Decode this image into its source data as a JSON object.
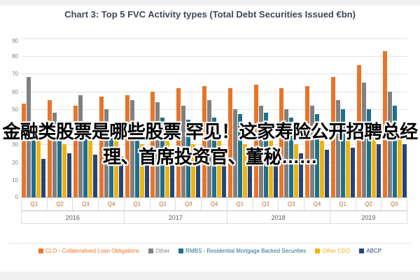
{
  "overlay": {
    "line1": "金融类股票是哪些股票 罕见！这家寿险公开招聘总经",
    "line2": "理、首席投资官、董秘……"
  },
  "chart_data": {
    "type": "bar",
    "title": "Chart 3: Top 5 FVC Activity types (Total Debt Securities Issued €bn)",
    "xlabel": "",
    "ylabel": "",
    "ylim": [
      0,
      90
    ],
    "ytick_step": 10,
    "grid": true,
    "legend_position": "bottom",
    "years": [
      {
        "label": "2016",
        "quarters": [
          "Q1",
          "Q2",
          "Q3",
          "Q4"
        ]
      },
      {
        "label": "2017",
        "quarters": [
          "Q1",
          "Q2",
          "Q3",
          "Q4"
        ]
      },
      {
        "label": "2018",
        "quarters": [
          "Q1",
          "Q2",
          "Q3",
          "Q4"
        ]
      },
      {
        "label": "2019",
        "quarters": [
          "Q1",
          "Q2",
          "Q3"
        ]
      }
    ],
    "series": [
      {
        "name": "CLO - Collateralised Loan Obligations",
        "color": "#e8742a",
        "values": [
          53,
          55,
          52,
          57,
          58,
          60,
          62,
          63,
          62,
          64,
          62,
          63,
          68,
          75,
          83
        ]
      },
      {
        "name": "Other",
        "color": "#808080",
        "values": [
          68,
          48,
          58,
          50,
          55,
          54,
          52,
          55,
          50,
          52,
          50,
          52,
          55,
          65,
          60
        ]
      },
      {
        "name": "RMBS - Residential Mortgage Backed Securities",
        "color": "#1f6f8b",
        "values": [
          37,
          43,
          38,
          40,
          42,
          45,
          44,
          45,
          47,
          48,
          45,
          47,
          50,
          50,
          52
        ]
      },
      {
        "name": "Other CDO",
        "color": "#eeb211",
        "values": [
          35,
          30,
          32,
          33,
          30,
          32,
          30,
          32,
          30,
          32,
          30,
          32,
          33,
          35,
          35
        ]
      },
      {
        "name": "ABCP",
        "color": "#264478",
        "values": [
          22,
          25,
          24,
          23,
          25,
          27,
          25,
          27,
          25,
          28,
          25,
          27,
          28,
          30,
          30
        ]
      }
    ]
  }
}
